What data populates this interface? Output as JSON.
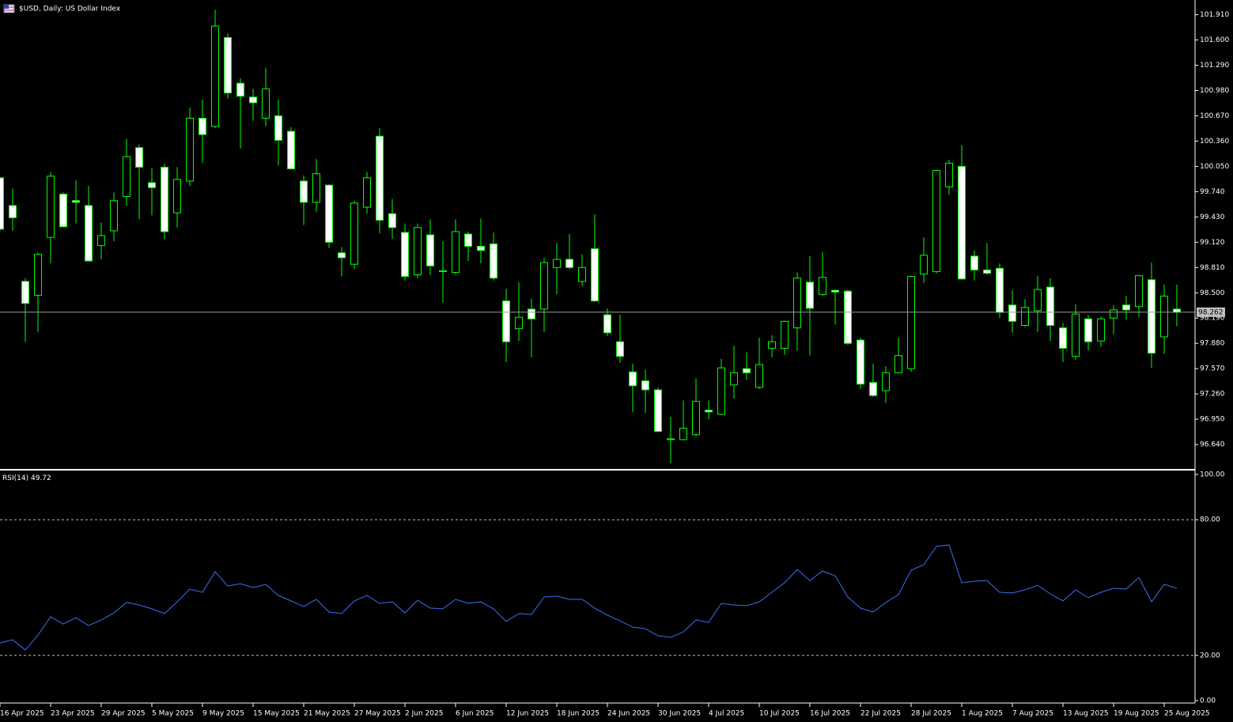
{
  "chart_data": [
    {
      "type": "candlestick",
      "title": "$USD, Daily:  US Dollar Index",
      "categories": [
        "16 Apr 2025",
        null,
        null,
        null,
        "23 Apr 2025",
        null,
        null,
        null,
        "29 Apr 2025",
        null,
        null,
        null,
        "5 May 2025",
        null,
        null,
        null,
        "9 May 2025",
        null,
        null,
        null,
        "15 May 2025",
        null,
        null,
        null,
        "21 May 2025",
        null,
        null,
        null,
        "27 May 2025",
        null,
        null,
        null,
        "2 Jun 2025",
        null,
        null,
        null,
        "6 Jun 2025",
        null,
        null,
        null,
        "12 Jun 2025",
        null,
        null,
        null,
        "18 Jun 2025",
        null,
        null,
        null,
        "24 Jun 2025",
        null,
        null,
        null,
        "30 Jun 2025",
        null,
        null,
        null,
        "4 Jul 2025",
        null,
        null,
        null,
        "10 Jul 2025",
        null,
        null,
        null,
        "16 Jul 2025",
        null,
        null,
        null,
        "22 Jul 2025",
        null,
        null,
        null,
        "28 Jul 2025",
        null,
        null,
        null,
        "1 Aug 2025",
        null,
        null,
        null,
        "7 Aug 2025",
        null,
        null,
        null,
        "13 Aug 2025",
        null,
        null,
        null,
        "19 Aug 2025",
        null,
        null,
        null,
        "25 Aug 2025",
        null
      ],
      "open": [
        99.91,
        99.57,
        98.64,
        98.47,
        99.18,
        99.71,
        99.63,
        99.57,
        99.08,
        99.26,
        99.68,
        100.28,
        99.85,
        100.04,
        99.48,
        99.87,
        100.64,
        100.54,
        101.63,
        101.07,
        100.9,
        100.64,
        100.67,
        100.48,
        99.87,
        99.61,
        99.82,
        98.99,
        98.85,
        99.55,
        100.42,
        99.47,
        99.24,
        98.72,
        99.21,
        98.76,
        98.75,
        99.22,
        99.07,
        99.1,
        98.4,
        98.06,
        98.3,
        98.3,
        98.81,
        98.91,
        98.64,
        99.04,
        98.23,
        97.9,
        97.53,
        97.42,
        97.31,
        96.7,
        96.7,
        96.76,
        97.06,
        97.01,
        97.37,
        97.57,
        97.34,
        97.82,
        97.82,
        98.07,
        98.63,
        98.48,
        98.53,
        98.52,
        97.92,
        97.4,
        97.3,
        97.52,
        97.57,
        98.73,
        98.76,
        99.8,
        100.05,
        98.95,
        98.78,
        98.8,
        98.35,
        98.1,
        98.28,
        98.57,
        98.07,
        97.72,
        98.18,
        97.91,
        98.19,
        98.35,
        98.33,
        98.66,
        97.96,
        98.3
      ],
      "high": [
        99.91,
        99.78,
        98.68,
        98.99,
        99.98,
        99.73,
        99.88,
        99.81,
        99.36,
        99.73,
        100.39,
        100.32,
        100.03,
        100.08,
        100.04,
        100.77,
        100.87,
        101.97,
        101.68,
        101.13,
        101.0,
        101.26,
        100.87,
        100.53,
        99.94,
        100.14,
        99.83,
        99.06,
        99.63,
        99.98,
        100.52,
        99.65,
        99.35,
        99.35,
        99.4,
        99.13,
        99.4,
        99.25,
        99.41,
        99.24,
        98.55,
        98.63,
        98.43,
        98.93,
        99.11,
        99.22,
        98.97,
        99.46,
        98.31,
        98.23,
        97.63,
        97.56,
        97.34,
        96.98,
        97.18,
        97.45,
        97.18,
        97.69,
        97.85,
        97.77,
        97.95,
        97.98,
        98.16,
        98.75,
        98.95,
        99.0,
        98.54,
        98.54,
        97.95,
        97.63,
        97.6,
        97.95,
        98.71,
        99.18,
        100.01,
        100.13,
        100.31,
        99.02,
        99.11,
        98.86,
        98.53,
        98.42,
        98.71,
        98.68,
        98.13,
        98.36,
        98.23,
        98.21,
        98.35,
        98.46,
        98.72,
        98.87,
        98.6,
        98.6
      ],
      "low": [
        99.26,
        99.26,
        97.9,
        98.02,
        98.86,
        99.3,
        99.35,
        98.89,
        98.91,
        99.13,
        99.57,
        99.4,
        99.45,
        99.16,
        99.3,
        99.81,
        100.09,
        100.52,
        100.88,
        100.27,
        100.61,
        100.54,
        100.06,
        100.01,
        99.33,
        99.49,
        99.05,
        98.7,
        98.79,
        99.47,
        99.23,
        99.16,
        98.65,
        98.68,
        98.72,
        98.38,
        98.73,
        98.89,
        98.86,
        98.65,
        97.65,
        97.91,
        97.71,
        98.02,
        98.48,
        98.79,
        98.58,
        98.39,
        97.97,
        97.64,
        97.04,
        97.03,
        96.79,
        96.41,
        96.69,
        96.74,
        96.95,
        97.0,
        97.2,
        97.43,
        97.32,
        97.71,
        97.74,
        97.79,
        97.73,
        98.46,
        98.11,
        97.86,
        97.32,
        97.22,
        97.15,
        97.51,
        97.53,
        98.62,
        98.74,
        99.7,
        98.66,
        98.65,
        98.72,
        98.19,
        98.01,
        98.08,
        98.02,
        97.91,
        97.65,
        97.68,
        97.79,
        97.84,
        97.99,
        98.17,
        98.2,
        97.58,
        97.75,
        98.09
      ],
      "close": [
        99.28,
        99.42,
        98.37,
        98.97,
        99.93,
        99.31,
        99.61,
        98.89,
        99.2,
        99.63,
        100.17,
        100.04,
        99.79,
        99.25,
        99.89,
        100.64,
        100.44,
        101.77,
        100.95,
        100.91,
        100.83,
        101.0,
        100.37,
        100.02,
        99.61,
        99.96,
        99.12,
        98.93,
        99.6,
        99.91,
        99.39,
        99.3,
        98.7,
        99.3,
        98.83,
        98.77,
        99.25,
        99.07,
        99.02,
        98.68,
        97.9,
        98.2,
        98.18,
        98.87,
        98.91,
        98.81,
        98.81,
        98.4,
        98.01,
        97.72,
        97.36,
        97.31,
        96.8,
        96.71,
        96.84,
        97.17,
        97.04,
        97.58,
        97.52,
        97.52,
        97.62,
        97.9,
        98.15,
        98.68,
        98.31,
        98.69,
        98.51,
        97.88,
        97.38,
        97.24,
        97.52,
        97.73,
        98.7,
        98.96,
        100.0,
        100.09,
        98.67,
        98.78,
        98.74,
        98.26,
        98.15,
        98.32,
        98.54,
        98.1,
        97.82,
        98.24,
        97.9,
        98.18,
        98.29,
        98.29,
        98.71,
        97.76,
        98.46,
        98.262
      ],
      "last_price": 98.262,
      "up_color": "#00ff00",
      "down_color": "#ffffff",
      "ylim": [
        96.35,
        102.09
      ],
      "yticks": [
        {
          "value": 101.91,
          "label": "101.910"
        },
        {
          "value": 101.6,
          "label": "101.600"
        },
        {
          "value": 101.29,
          "label": "101.290"
        },
        {
          "value": 100.98,
          "label": "100.980"
        },
        {
          "value": 100.67,
          "label": "100.670"
        },
        {
          "value": 100.36,
          "label": "100.360"
        },
        {
          "value": 100.05,
          "label": "100.050"
        },
        {
          "value": 99.74,
          "label": "99.740"
        },
        {
          "value": 99.43,
          "label": "99.430"
        },
        {
          "value": 99.12,
          "label": "99.120"
        },
        {
          "value": 98.81,
          "label": "98.810"
        },
        {
          "value": 98.5,
          "label": "98.500"
        },
        {
          "value": 98.19,
          "label": "98.190"
        },
        {
          "value": 97.88,
          "label": "97.880"
        },
        {
          "value": 97.57,
          "label": "97.570"
        },
        {
          "value": 97.26,
          "label": "97.260"
        },
        {
          "value": 96.95,
          "label": "96.950"
        },
        {
          "value": 96.64,
          "label": "96.640"
        }
      ]
    },
    {
      "type": "line",
      "title": "RSI(14)",
      "last_value": 49.72,
      "color": "#3b6ff5",
      "values": [
        25.5,
        26.9,
        22.4,
        29.0,
        37.1,
        33.9,
        36.7,
        33.2,
        35.7,
        38.8,
        43.4,
        42.3,
        40.6,
        38.5,
        43.7,
        49.3,
        47.9,
        57.0,
        50.7,
        51.7,
        50.0,
        51.4,
        46.5,
        44.1,
        41.6,
        44.8,
        39.2,
        38.5,
        44.1,
        46.5,
        43.0,
        43.7,
        38.8,
        44.4,
        40.9,
        40.6,
        44.8,
        43.0,
        43.7,
        40.6,
        35.0,
        38.5,
        38.1,
        45.8,
        46.2,
        44.8,
        44.8,
        40.9,
        37.8,
        35.3,
        32.5,
        31.8,
        28.7,
        28.0,
        30.4,
        35.7,
        34.6,
        43.0,
        42.3,
        42.0,
        43.7,
        47.9,
        52.1,
        58.0,
        53.1,
        57.3,
        55.2,
        45.8,
        40.9,
        39.2,
        43.4,
        46.9,
        57.7,
        60.1,
        68.2,
        68.9,
        52.1,
        52.8,
        53.1,
        47.9,
        47.6,
        49.0,
        51.0,
        47.2,
        44.1,
        49.0,
        45.5,
        47.9,
        49.7,
        49.3,
        54.5,
        43.7,
        51.4,
        49.72
      ],
      "ylim": [
        0,
        100
      ],
      "yticks": [
        {
          "value": 100,
          "label": "100.00"
        },
        {
          "value": 80,
          "label": "80.00"
        },
        {
          "value": 20,
          "label": "20.00"
        },
        {
          "value": 0,
          "label": "0.00"
        }
      ],
      "levels": [
        80,
        20
      ]
    }
  ]
}
